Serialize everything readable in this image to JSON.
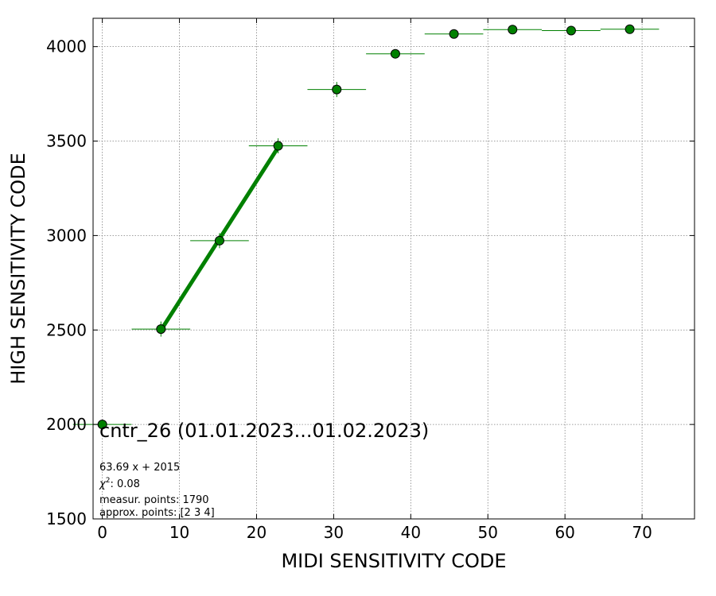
{
  "chart_data": {
    "type": "scatter",
    "xlabel": "MIDI SENSITIVITY CODE",
    "ylabel": "HIGH SENSITIVITY CODE",
    "xlim": [
      -1.2,
      76.8
    ],
    "ylim": [
      1500,
      4150
    ],
    "xticks": [
      0,
      10,
      20,
      30,
      40,
      50,
      60,
      70
    ],
    "yticks": [
      1500,
      2000,
      2500,
      3000,
      3500,
      4000
    ],
    "grid": true,
    "colors": {
      "series": "#008000",
      "marker_edge": "#000000",
      "grid": "#808080"
    },
    "points": [
      {
        "x": 0.0,
        "y": 2000,
        "xerr": 3.8,
        "yerr": 8
      },
      {
        "x": 7.6,
        "y": 2505,
        "xerr": 3.8,
        "yerr": 40
      },
      {
        "x": 15.2,
        "y": 2973,
        "xerr": 3.8,
        "yerr": 40
      },
      {
        "x": 22.8,
        "y": 3475,
        "xerr": 3.8,
        "yerr": 40
      },
      {
        "x": 30.4,
        "y": 3773,
        "xerr": 3.8,
        "yerr": 40
      },
      {
        "x": 38.0,
        "y": 3962,
        "xerr": 3.8,
        "yerr": 15
      },
      {
        "x": 45.6,
        "y": 4067,
        "xerr": 3.8,
        "yerr": 10
      },
      {
        "x": 53.2,
        "y": 4090,
        "xerr": 3.8,
        "yerr": 8
      },
      {
        "x": 60.8,
        "y": 4085,
        "xerr": 3.8,
        "yerr": 8
      },
      {
        "x": 68.4,
        "y": 4092,
        "xerr": 3.8,
        "yerr": 8
      }
    ],
    "fit": {
      "x": [
        7.6,
        22.8
      ],
      "y": [
        2499,
        3467
      ]
    },
    "annotations": {
      "title": "cntr_26 (01.01.2023...01.02.2023)",
      "fit_equation": "63.69 x + 2015",
      "chi2_label": "χ",
      "chi2_sup": "2",
      "chi2_value": ": 0.08",
      "measured_points": "measur. points: 1790",
      "approx_points": "approx. points: [2 3 4]"
    }
  }
}
